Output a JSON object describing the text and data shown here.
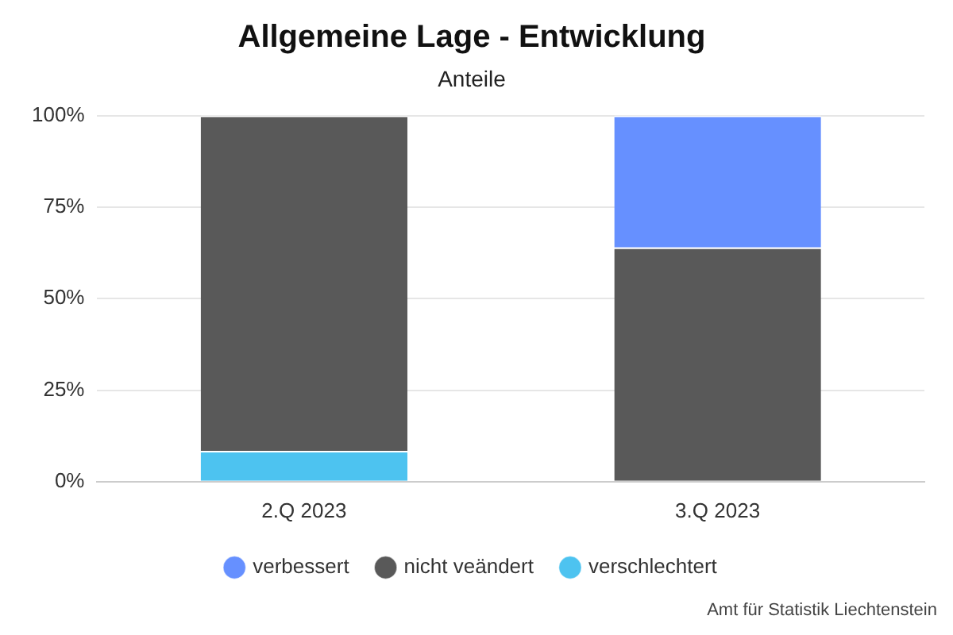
{
  "chart_data": {
    "type": "bar",
    "title": "Allgemeine Lage - Entwicklung",
    "subtitle": "Anteile",
    "categories": [
      "2.Q 2023",
      "3.Q 2023"
    ],
    "stacked": true,
    "series": [
      {
        "name": "verschlechtert",
        "color": "#4dc3f0",
        "values": [
          8.4,
          0
        ]
      },
      {
        "name": "nicht veändert",
        "color": "#595959",
        "values": [
          91.6,
          64
        ]
      },
      {
        "name": "verbessert",
        "color": "#6690ff",
        "values": [
          0,
          36
        ]
      }
    ],
    "ylim": [
      0,
      100
    ],
    "yticks": [
      {
        "value": 0,
        "label": "0%"
      },
      {
        "value": 25,
        "label": "25%"
      },
      {
        "value": 50,
        "label": "50%"
      },
      {
        "value": 75,
        "label": "75%"
      },
      {
        "value": 100,
        "label": "100%"
      }
    ],
    "grid": "y",
    "legend": "bottom",
    "annotations": [
      "Amt für Statistik Liechtenstein"
    ]
  }
}
